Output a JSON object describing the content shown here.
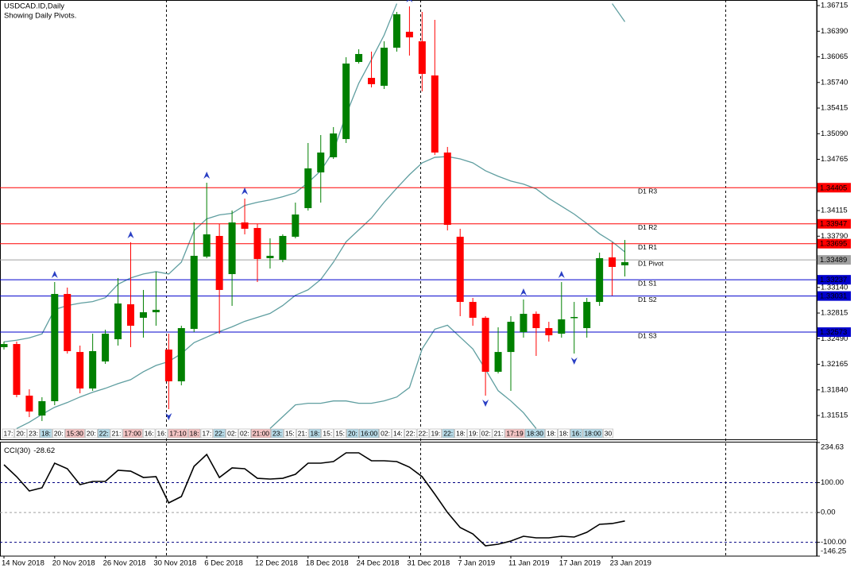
{
  "chart_data": [
    {
      "type": "candlestick",
      "title": "USDCAD.ID,Daily",
      "subtitle": "Showing Daily Pivots.",
      "categories": [
        "14 Nov 2018",
        null,
        null,
        null,
        "20 Nov 2018",
        null,
        null,
        null,
        "26 Nov 2018",
        null,
        null,
        null,
        "30 Nov 2018",
        null,
        null,
        null,
        "6 Dec 2018",
        null,
        null,
        null,
        "12 Dec 2018",
        null,
        null,
        null,
        "18 Dec 2018",
        null,
        null,
        null,
        "24 Dec 2018",
        null,
        null,
        null,
        "31 Dec 2018",
        null,
        null,
        null,
        "7 Jan 2019",
        null,
        null,
        null,
        "11 Jan 2019",
        null,
        null,
        null,
        "17 Jan 2019",
        null,
        null,
        null,
        "23 Jan 2019",
        null
      ],
      "open": [
        1.32382,
        1.32422,
        1.31767,
        1.31515,
        1.31697,
        1.33057,
        1.32321,
        1.31858,
        1.32201,
        1.32483,
        1.32926,
        1.32755,
        1.32825,
        1.32352,
        1.31949,
        1.32614,
        1.33531,
        1.33793,
        1.33309,
        1.33964,
        1.33894,
        1.33511,
        1.33491,
        1.33783,
        1.34146,
        1.34599,
        1.34791,
        1.35022,
        1.36,
        1.35798,
        1.35698,
        1.36181,
        1.36383,
        1.36262,
        1.35829,
        1.34851,
        1.33783,
        1.32956,
        1.32755,
        1.3207,
        1.32321,
        1.32573,
        1.32805,
        1.32624,
        1.32553,
        1.32755,
        1.32624,
        1.32956,
        1.33521,
        1.3342
      ],
      "high": [
        1.32453,
        1.32453,
        1.31848,
        1.31747,
        1.33208,
        1.33138,
        1.32402,
        1.32553,
        1.32604,
        1.33259,
        1.33712,
        1.33108,
        1.33339,
        1.32553,
        1.32654,
        1.33964,
        1.34468,
        1.33944,
        1.34115,
        1.34267,
        1.33944,
        1.33763,
        1.33813,
        1.34216,
        1.34972,
        1.35073,
        1.35174,
        1.3606,
        1.36161,
        1.36131,
        1.36262,
        1.36635,
        1.36705,
        1.36635,
        1.36534,
        1.34922,
        1.33884,
        1.33007,
        1.32775,
        1.32634,
        1.32775,
        1.32987,
        1.32835,
        1.32704,
        1.33208,
        1.32956,
        1.33007,
        1.33581,
        1.33712,
        1.33742
      ],
      "low": [
        1.32352,
        1.31747,
        1.31495,
        1.31445,
        1.31646,
        1.32301,
        1.31797,
        1.31828,
        1.3217,
        1.32402,
        1.32382,
        1.32503,
        1.32654,
        1.31596,
        1.31898,
        1.32573,
        1.33511,
        1.32553,
        1.32906,
        1.33813,
        1.33208,
        1.3338,
        1.3346,
        1.33763,
        1.34115,
        1.34216,
        1.3477,
        1.34972,
        1.3598,
        1.35677,
        1.35657,
        1.36131,
        1.36081,
        1.35627,
        1.34821,
        1.33863,
        1.32775,
        1.32654,
        1.31767,
        1.32049,
        1.31828,
        1.32503,
        1.32271,
        1.32453,
        1.32503,
        1.32301,
        1.32503,
        1.32906,
        1.33037,
        1.33279
      ],
      "close": [
        1.32422,
        1.31777,
        1.31566,
        1.31697,
        1.33057,
        1.32332,
        1.31858,
        1.32332,
        1.32553,
        1.32936,
        1.32654,
        1.32825,
        1.32856,
        1.31949,
        1.32624,
        1.33541,
        1.33813,
        1.33108,
        1.33964,
        1.33884,
        1.33501,
        1.33541,
        1.33793,
        1.34065,
        1.3465,
        1.34851,
        1.35093,
        1.3598,
        1.36101,
        1.35718,
        1.36181,
        1.36605,
        1.36312,
        1.35849,
        1.34851,
        1.33934,
        1.32956,
        1.32755,
        1.3207,
        1.32321,
        1.32704,
        1.32805,
        1.32624,
        1.32533,
        1.32735,
        1.32765,
        1.32956,
        1.33511,
        1.334,
        1.3346
      ],
      "up_color": "#008000",
      "down_color": "#ff0000",
      "overlays": [
        {
          "color": "#5f9ea0",
          "values": [
            1.3245,
            1.3247,
            1.325,
            1.3255,
            1.3286,
            1.3291,
            1.3294,
            1.3296,
            1.3301,
            1.3318,
            1.3326,
            1.3331,
            1.3334,
            1.3331,
            1.3346,
            1.3386,
            1.3401,
            1.3406,
            1.3408,
            1.3418,
            1.3422,
            1.3425,
            1.3429,
            1.3434,
            1.3447,
            1.3462,
            1.3487,
            1.3533,
            1.3573,
            1.3603,
            1.3634,
            1.3674,
            null,
            null,
            null,
            null,
            null,
            null,
            null,
            null,
            null,
            null,
            null,
            null,
            null,
            null,
            null,
            null,
            1.3674,
            1.3651
          ]
        },
        {
          "color": "#5f9ea0",
          "values": [
            null,
            1.3135,
            1.3143,
            1.3153,
            1.3162,
            1.3168,
            1.3175,
            1.3181,
            1.3186,
            1.3192,
            1.3197,
            1.3207,
            1.3215,
            1.322,
            1.323,
            1.3244,
            1.3251,
            1.3258,
            1.3264,
            1.3271,
            1.3276,
            1.3281,
            1.3291,
            1.3304,
            1.3311,
            1.3324,
            1.3346,
            1.3372,
            1.3387,
            1.3402,
            1.3422,
            1.344,
            1.3457,
            1.3472,
            1.3479,
            1.348,
            1.3477,
            1.3472,
            1.3462,
            1.3455,
            1.3449,
            1.3445,
            1.3439,
            1.3427,
            1.3417,
            1.3407,
            1.3395,
            1.3382,
            1.3372,
            1.3359
          ]
        },
        {
          "color": "#5f9ea0",
          "values": [
            null,
            null,
            null,
            null,
            null,
            null,
            null,
            null,
            null,
            null,
            null,
            null,
            null,
            null,
            null,
            null,
            null,
            null,
            null,
            null,
            null,
            1.3135,
            1.315,
            1.3165,
            1.3167,
            1.3167,
            1.317,
            1.317,
            1.3167,
            1.3167,
            1.317,
            1.3175,
            1.3187,
            1.3236,
            1.3261,
            1.3266,
            1.3251,
            1.3236,
            1.321,
            1.3183,
            1.317,
            1.3155,
            1.3135,
            null,
            null,
            null,
            null,
            null,
            null,
            null
          ]
        }
      ],
      "fractals": {
        "color": "#2a3fc4",
        "up": [
          null,
          null,
          null,
          null,
          1.33208,
          null,
          null,
          null,
          null,
          null,
          1.33712,
          null,
          null,
          null,
          null,
          null,
          1.34468,
          null,
          null,
          1.34267,
          null,
          null,
          null,
          null,
          null,
          null,
          null,
          null,
          null,
          null,
          null,
          null,
          1.36705,
          null,
          null,
          null,
          null,
          null,
          null,
          null,
          null,
          1.32987,
          null,
          null,
          1.33208,
          null,
          null,
          null,
          null,
          null
        ],
        "down": [
          null,
          null,
          null,
          null,
          null,
          null,
          null,
          null,
          null,
          null,
          null,
          null,
          null,
          1.31596,
          null,
          null,
          null,
          null,
          null,
          null,
          null,
          null,
          null,
          null,
          null,
          null,
          null,
          null,
          null,
          null,
          null,
          null,
          null,
          null,
          null,
          null,
          null,
          null,
          1.31767,
          null,
          null,
          null,
          null,
          null,
          null,
          1.32301,
          null,
          null,
          null,
          null
        ]
      },
      "pivots": [
        {
          "name": "D1 R3",
          "value": 1.34405,
          "color": "#ff0000"
        },
        {
          "name": "D1 R2",
          "value": 1.33947,
          "color": "#ff0000"
        },
        {
          "name": "D1 R1",
          "value": 1.33695,
          "color": "#ff0000"
        },
        {
          "name": "D1 Pivot",
          "value": 1.33489,
          "color": "#a0a0a0"
        },
        {
          "name": "D1 S1",
          "value": 1.33237,
          "color": "#0000cd"
        },
        {
          "name": "D1 S2",
          "value": 1.33031,
          "color": "#0000cd"
        },
        {
          "name": "D1 S3",
          "value": 1.32573,
          "color": "#0000cd"
        }
      ],
      "time_labels": [
        {
          "text": "17:"
        },
        {
          "text": "20:"
        },
        {
          "text": "23:"
        },
        {
          "text": "18:",
          "bg": "#b7dbe8"
        },
        {
          "text": "20:"
        },
        {
          "text": "15:30",
          "bg": "#f4c4c4"
        },
        {
          "text": "20:"
        },
        {
          "text": "22:",
          "bg": "#b7dbe8"
        },
        {
          "text": "21:"
        },
        {
          "text": "17:00",
          "bg": "#f4c4c4"
        },
        {
          "text": "16:"
        },
        {
          "text": "16:"
        },
        {
          "text": "17:10",
          "bg": "#f4c4c4"
        },
        {
          "text": "18:",
          "bg": "#f4c4c4"
        },
        {
          "text": "17:"
        },
        {
          "text": "22:",
          "bg": "#b7dbe8"
        },
        {
          "text": "02:"
        },
        {
          "text": "02:"
        },
        {
          "text": "21:00",
          "bg": "#f4c4c4"
        },
        {
          "text": "23:",
          "bg": "#b7dbe8"
        },
        {
          "text": "15:"
        },
        {
          "text": "21:"
        },
        {
          "text": "18:",
          "bg": "#b7dbe8"
        },
        {
          "text": "15:"
        },
        {
          "text": "15:"
        },
        {
          "text": "20:",
          "bg": "#b7dbe8"
        },
        {
          "text": "16:00",
          "bg": "#b7dbe8"
        },
        {
          "text": "02:"
        },
        {
          "text": "14:"
        },
        {
          "text": "22:"
        },
        {
          "text": "22:"
        },
        {
          "text": "19:"
        },
        {
          "text": "22:",
          "bg": "#b7dbe8"
        },
        {
          "text": "18:"
        },
        {
          "text": "19:"
        },
        {
          "text": "02:"
        },
        {
          "text": "21:"
        },
        {
          "text": "17:19",
          "bg": "#f4c4c4"
        },
        {
          "text": "18:30",
          "bg": "#b7dbe8"
        },
        {
          "text": "18:"
        },
        {
          "text": "18:"
        },
        {
          "text": "16:",
          "bg": "#b7dbe8"
        },
        {
          "text": "18:00",
          "bg": "#b7dbe8"
        },
        {
          "text": "30"
        }
      ],
      "ylim": [
        1.31213,
        1.36786
      ],
      "yticks": [
        1.36715,
        {
          "value": 1.3639,
          "label": "1.36390"
        },
        1.36065,
        {
          "value": 1.3574,
          "label": "1.35740"
        },
        1.35415,
        {
          "value": 1.3509,
          "label": "1.35090"
        },
        1.34765,
        1.34115,
        {
          "value": 1.3379,
          "label": "1.33790"
        },
        {
          "value": 1.3314,
          "label": "1.33140"
        },
        1.32815,
        {
          "value": 1.3249,
          "label": "1.32490"
        },
        1.32165,
        {
          "value": 1.3184,
          "label": "1.31840"
        },
        1.31515
      ],
      "grid": false
    },
    {
      "type": "line",
      "title": "CCI(30)",
      "current": -28.62,
      "color": "#000000",
      "values": [
        160.0,
        120.1,
        72.1,
        82.8,
        165.4,
        146.7,
        93.4,
        104.1,
        104.1,
        141.4,
        138.7,
        117.4,
        120.1,
        32.2,
        53.5,
        154.7,
        194.6,
        117.4,
        149.4,
        146.7,
        114.7,
        112.1,
        114.7,
        128.1,
        165.4,
        165.4,
        170.7,
        200.0,
        200.0,
        173.4,
        173.4,
        170.7,
        152.0,
        120.1,
        61.5,
        0.2,
        -50.4,
        -71.7,
        -111.6,
        -106.3,
        -95.7,
        -79.7,
        -85.0,
        -85.0,
        -79.7,
        -82.3,
        -66.4,
        -39.7,
        -37.0,
        -28.62
      ],
      "ylim": [
        -146.25,
        234.63
      ],
      "yticks": [
        234.63,
        {
          "value": 100,
          "label": "100.00"
        },
        {
          "value": 0,
          "label": "0.00"
        },
        {
          "value": -100,
          "label": "-100.00"
        },
        -146.25
      ],
      "grid": true,
      "grid_color": "#000080",
      "zero_line_color": "#a0a0a0"
    }
  ]
}
